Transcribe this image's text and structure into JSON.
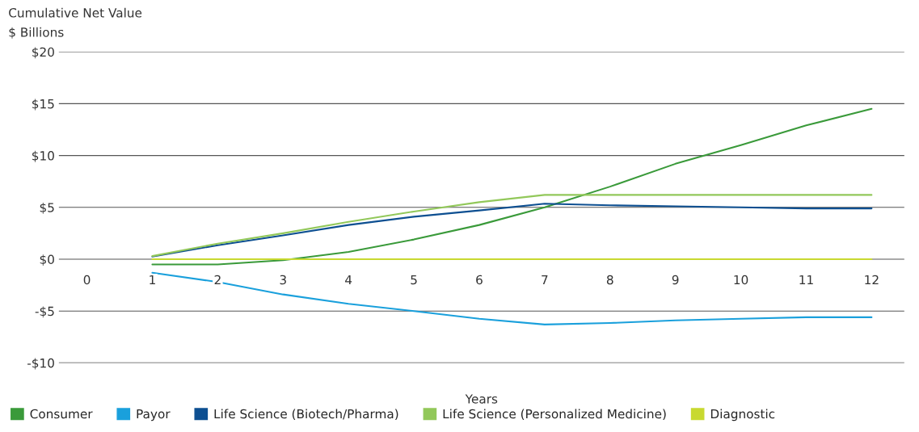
{
  "chart_data": {
    "type": "line",
    "title": "Cumulative Net Value",
    "subtitle": "$ Billions",
    "xlabel": "Years",
    "x": [
      1,
      2,
      3,
      4,
      5,
      6,
      7,
      8,
      9,
      10,
      11,
      12
    ],
    "series": [
      {
        "name": "Consumer",
        "color": "#3a9a3a",
        "values": [
          -0.5,
          -0.5,
          -0.1,
          0.7,
          1.9,
          3.3,
          5.0,
          7.0,
          9.2,
          11.0,
          12.9,
          14.5
        ]
      },
      {
        "name": "Payor",
        "color": "#1aa0dc",
        "values": [
          -1.3,
          -2.2,
          -3.4,
          -4.3,
          -5.0,
          -5.75,
          -6.3,
          -6.15,
          -5.9,
          -5.75,
          -5.6,
          -5.6
        ]
      },
      {
        "name": "Life Science (Biotech/Pharma)",
        "color": "#0d4f91",
        "values": [
          0.25,
          1.35,
          2.3,
          3.3,
          4.1,
          4.7,
          5.35,
          5.2,
          5.1,
          5.0,
          4.9,
          4.9
        ]
      },
      {
        "name": "Life Science (Personalized Medicine)",
        "color": "#92c85a",
        "values": [
          0.3,
          1.5,
          2.5,
          3.6,
          4.6,
          5.5,
          6.2,
          6.2,
          6.2,
          6.2,
          6.2,
          6.2
        ]
      },
      {
        "name": "Diagnostic",
        "color": "#c8d930",
        "values": [
          0,
          0,
          0,
          0,
          0,
          0,
          0,
          0,
          0,
          0,
          0,
          0
        ]
      }
    ],
    "xlim": [
      -0.43,
      12.5
    ],
    "xticks": [
      0,
      1,
      2,
      3,
      4,
      5,
      6,
      7,
      8,
      9,
      10,
      11,
      12
    ],
    "ylim": [
      -10,
      20
    ],
    "yticks": [
      {
        "value": -10,
        "label": "-$10"
      },
      {
        "value": -5,
        "label": "-$5"
      },
      {
        "value": 0,
        "label": "$0"
      },
      {
        "value": 5,
        "label": "$5"
      },
      {
        "value": 10,
        "label": "$10"
      },
      {
        "value": 15,
        "label": "$15"
      },
      {
        "value": 20,
        "label": "$20"
      }
    ],
    "grid": "y",
    "legend": "bottom",
    "marker": "none",
    "line_style": "solid"
  }
}
